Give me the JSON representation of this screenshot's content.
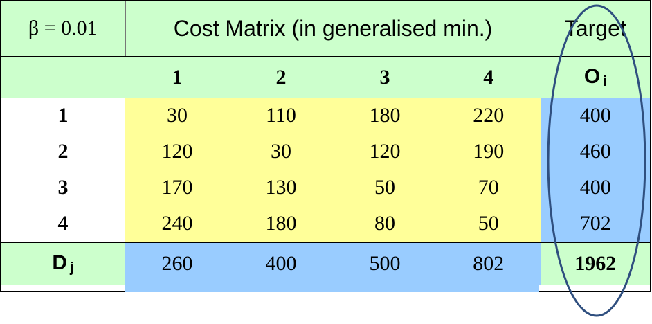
{
  "header": {
    "beta_label": "β = 0.01",
    "matrix_title": "Cost Matrix (in generalised min.)",
    "target_title": "Target"
  },
  "columns": [
    "1",
    "2",
    "3",
    "4"
  ],
  "origin_header": {
    "letter": "O",
    "sub": "i"
  },
  "rows": [
    {
      "label": "1",
      "costs": [
        "30",
        "110",
        "180",
        "220"
      ],
      "target": "400"
    },
    {
      "label": "2",
      "costs": [
        "120",
        "30",
        "120",
        "190"
      ],
      "target": "460"
    },
    {
      "label": "3",
      "costs": [
        "170",
        "130",
        "50",
        "70"
      ],
      "target": "400"
    },
    {
      "label": "4",
      "costs": [
        "240",
        "180",
        "80",
        "50"
      ],
      "target": "702"
    }
  ],
  "dest_row": {
    "label": {
      "letter": "D",
      "sub": "j"
    },
    "values": [
      "260",
      "400",
      "500",
      "802"
    ],
    "total": "1962"
  },
  "colors": {
    "header_bg": "#ccffcc",
    "cost_bg": "#ffff99",
    "target_bg": "#99ccff",
    "oval": "#2f4f7f"
  }
}
